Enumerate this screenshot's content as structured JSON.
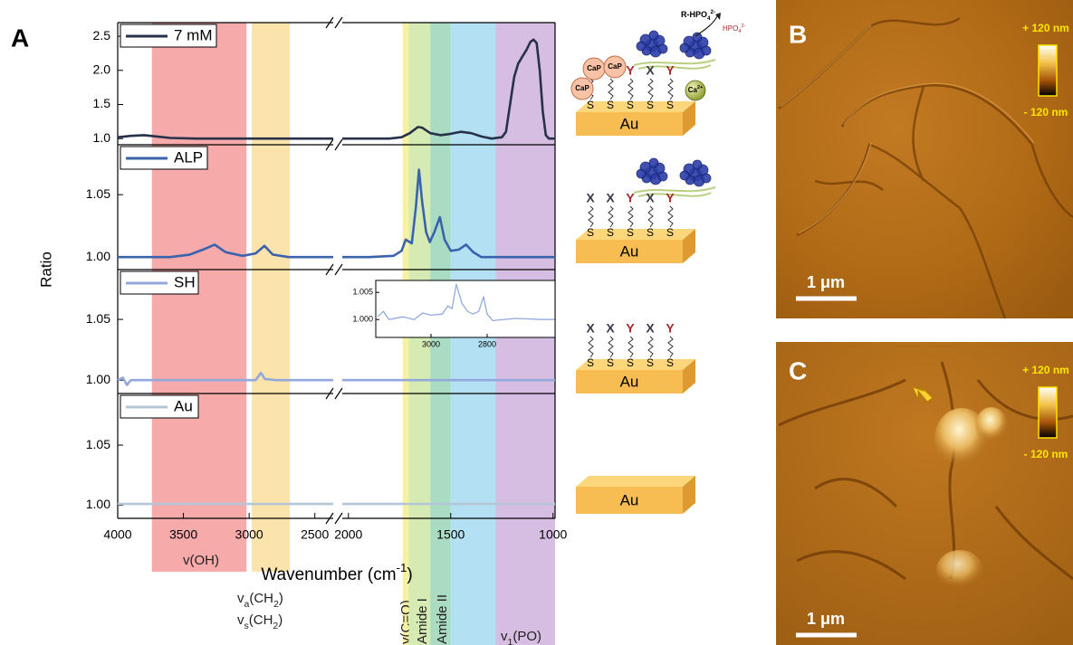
{
  "panel_labels": [
    "A",
    "B",
    "C"
  ],
  "chart_data": {
    "type": "line",
    "y_label": "Ratio",
    "x_label_parts": [
      {
        "text": "Wavenumber (cm"
      },
      {
        "text": "-1",
        "pos": "sup"
      },
      {
        "text": ")"
      }
    ],
    "xlim_segments": [
      [
        4000,
        2360
      ],
      [
        2030,
        990
      ]
    ],
    "xticks": [
      4000,
      3500,
      3000,
      2500,
      2000,
      1500,
      1000
    ],
    "bands": [
      {
        "range": [
          3740,
          3020
        ],
        "color": "#f6aaa9",
        "labels": [
          [
            {
              "text": "v(OH)"
            }
          ]
        ]
      },
      {
        "range": [
          2980,
          2690
        ],
        "color": "#fbe3ac",
        "labels": [
          [
            {
              "text": "v"
            },
            {
              "text": "a",
              "pos": "sub"
            },
            {
              "text": "(CH"
            },
            {
              "text": "2",
              "pos": "sub"
            },
            {
              "text": ")"
            }
          ],
          [
            {
              "text": "v"
            },
            {
              "text": "s",
              "pos": "sub"
            },
            {
              "text": "(CH"
            },
            {
              "text": "2",
              "pos": "sub"
            },
            {
              "text": ")"
            }
          ]
        ]
      },
      {
        "range": [
          1735,
          1705
        ],
        "color": "#f7f2a2",
        "labels": [
          [
            {
              "text": "v(C=O)"
            }
          ]
        ]
      },
      {
        "range": [
          1705,
          1600
        ],
        "color": "#d6ebb4",
        "labels": [
          [
            {
              "text": "Amide I"
            }
          ]
        ]
      },
      {
        "range": [
          1600,
          1500
        ],
        "color": "#a9dcc2",
        "labels": [
          [
            {
              "text": "Amide II"
            }
          ]
        ]
      },
      {
        "range": [
          1500,
          1280
        ],
        "color": "#b3e0f3"
      },
      {
        "range": [
          1280,
          990
        ],
        "color": "#d6bde2",
        "labels": [
          [
            {
              "text": "v"
            },
            {
              "text": "1",
              "pos": "sub"
            },
            {
              "text": "(PO)"
            }
          ]
        ]
      }
    ],
    "panels": [
      {
        "ylim": [
          0.91,
          2.7
        ],
        "yticks": [
          {
            "value": 1,
            "label": "1.0"
          },
          1.5,
          {
            "value": 2,
            "label": "2.0"
          },
          2.5
        ],
        "series": [
          {
            "name": "7 mM",
            "color": "#27324a",
            "x": [
              4000,
              3900,
              3800,
              3700,
              3600,
              3400,
              3200,
              3000,
              2800,
              2600,
              2360,
              2200,
              2030,
              1900,
              1800,
              1740,
              1700,
              1660,
              1640,
              1600,
              1550,
              1500,
              1450,
              1400,
              1350,
              1300,
              1250,
              1230,
              1210,
              1190,
              1170,
              1150,
              1130,
              1110,
              1095,
              1080,
              1065,
              1050,
              1035,
              1020,
              990
            ],
            "values": [
              1.02,
              1.04,
              1.05,
              1.03,
              1.01,
              1.0,
              1.0,
              1.0,
              1.0,
              1.0,
              1.0,
              null,
              1.0,
              1.0,
              1.0,
              1.02,
              1.08,
              1.17,
              1.16,
              1.08,
              1.05,
              1.07,
              1.1,
              1.08,
              1.03,
              1.0,
              1.02,
              1.1,
              1.5,
              1.9,
              2.1,
              2.2,
              2.3,
              2.42,
              2.45,
              2.4,
              2.0,
              1.4,
              1.05,
              1.0,
              1.0
            ]
          }
        ]
      },
      {
        "ylim": [
          0.99,
          1.09
        ],
        "yticks": [
          {
            "value": 1,
            "label": "1.00"
          },
          1.05
        ],
        "series": [
          {
            "name": "ALP",
            "color": "#3b62ad",
            "x": [
              4000,
              3800,
              3600,
              3450,
              3350,
              3262,
              3180,
              3050,
              2950,
              2883,
              2820,
              2700,
              2500,
              2360,
              2200,
              2030,
              1900,
              1780,
              1740,
              1720,
              1690,
              1670,
              1655,
              1640,
              1620,
              1602,
              1580,
              1553,
              1530,
              1500,
              1460,
              1425,
              1390,
              1350,
              1250,
              1150,
              1050,
              990
            ],
            "values": [
              1.0,
              1.0,
              1.0,
              1.002,
              1.006,
              1.01,
              1.004,
              1.001,
              1.003,
              1.009,
              1.002,
              1.0,
              1.0,
              1.0,
              null,
              1.0,
              1.0,
              1.001,
              1.005,
              1.014,
              1.011,
              1.04,
              1.07,
              1.045,
              1.02,
              1.012,
              1.02,
              1.032,
              1.014,
              1.005,
              1.006,
              1.01,
              1.004,
              1.0,
              1.0,
              1.0,
              1.0,
              1.0
            ]
          }
        ]
      },
      {
        "ylim": [
          0.989,
          1.091
        ],
        "yticks": [
          {
            "value": 1,
            "label": "1.00"
          },
          1.05
        ],
        "series": [
          {
            "name": "SH",
            "color": "#93a9dc",
            "x": [
              4000,
              3960,
              3930,
              3900,
              3700,
              3400,
              3100,
              2950,
              2910,
              2880,
              2800,
              2600,
              2360,
              2200,
              2030,
              1800,
              1600,
              1400,
              1200,
              990
            ],
            "values": [
              1.0,
              1.002,
              0.996,
              1.0,
              1.0,
              1.0,
              1.0,
              1.0,
              1.006,
              1.001,
              1.0,
              1.0,
              1.0,
              null,
              1.0,
              1.0,
              1.0,
              1.0,
              1.0,
              1.0
            ]
          }
        ],
        "inset": {
          "xlim": [
            3197,
            2558
          ],
          "ylim": [
            0.9967,
            1.0072
          ],
          "xticks": [
            3000,
            2800
          ],
          "yticks": [
            1.005,
            {
              "value": 1,
              "label": "1.000"
            }
          ],
          "series": [
            {
              "color": "#93a9dc",
              "x": [
                3190,
                3170,
                3150,
                3100,
                3060,
                3030,
                3000,
                2960,
                2940,
                2925,
                2910,
                2890,
                2870,
                2850,
                2830,
                2813,
                2800,
                2780,
                2700,
                2600,
                2560
              ],
              "values": [
                1.0005,
                1.0015,
                1.0,
                1.0005,
                1.0,
                1.0012,
                1.0008,
                1.001,
                1.0025,
                1.002,
                1.0065,
                1.003,
                1.0015,
                1.001,
                1.0015,
                1.0042,
                1.001,
                0.9998,
                1.0002,
                1.0,
                1.0
              ]
            }
          ]
        }
      },
      {
        "ylim": [
          0.989,
          1.093
        ],
        "yticks": [
          {
            "value": 1,
            "label": "1.00"
          },
          1.05
        ],
        "series": [
          {
            "name": "Au",
            "color": "#b5c6d6",
            "x": [
              4000,
              3700,
              3400,
              3100,
              2800,
              2500,
              2360,
              2200,
              2030,
              1700,
              1400,
              1100,
              990
            ],
            "values": [
              1.001,
              1.001,
              1.001,
              1.001,
              1.001,
              1.001,
              1.001,
              null,
              1.001,
              1.001,
              1.001,
              1.001,
              1.001
            ]
          }
        ]
      }
    ]
  },
  "schematics": [
    {
      "substrate": "Au",
      "anchors": [
        "S",
        "S",
        "S",
        "S",
        "S"
      ],
      "heads": [
        "Y",
        "X",
        "Y"
      ],
      "particles": [
        "CaP",
        "CaP",
        "CaP"
      ],
      "ion": [
        {
          "text": "Ca"
        },
        {
          "text": "2+",
          "pos": "sup"
        }
      ],
      "substrate_ester": [
        {
          "text": "R-HPO"
        },
        {
          "text": "4",
          "pos": "sub"
        },
        {
          "text": "2-",
          "pos": "sup"
        }
      ],
      "released": [
        {
          "text": "HPO"
        },
        {
          "text": "4",
          "pos": "sub"
        },
        {
          "text": "2-",
          "pos": "sup"
        }
      ]
    },
    {
      "substrate": "Au",
      "anchors": [
        "S",
        "S",
        "S",
        "S",
        "S"
      ],
      "heads": [
        "X",
        "X",
        "Y",
        "X",
        "Y"
      ]
    },
    {
      "substrate": "Au",
      "anchors": [
        "S",
        "S",
        "S",
        "S",
        "S"
      ],
      "heads": [
        "X",
        "X",
        "Y",
        "X",
        "Y"
      ]
    },
    {
      "substrate": "Au"
    }
  ],
  "head_colors": {
    "X": "#3a3a4a",
    "Y": "#a52a2a"
  },
  "afm_images": [
    {
      "scale_bar": "1 μm",
      "colorbar_max": "+ 120 nm",
      "colorbar_min": "- 120 nm"
    },
    {
      "scale_bar": "1 μm",
      "colorbar_max": "+ 120 nm",
      "colorbar_min": "- 120 nm"
    }
  ]
}
